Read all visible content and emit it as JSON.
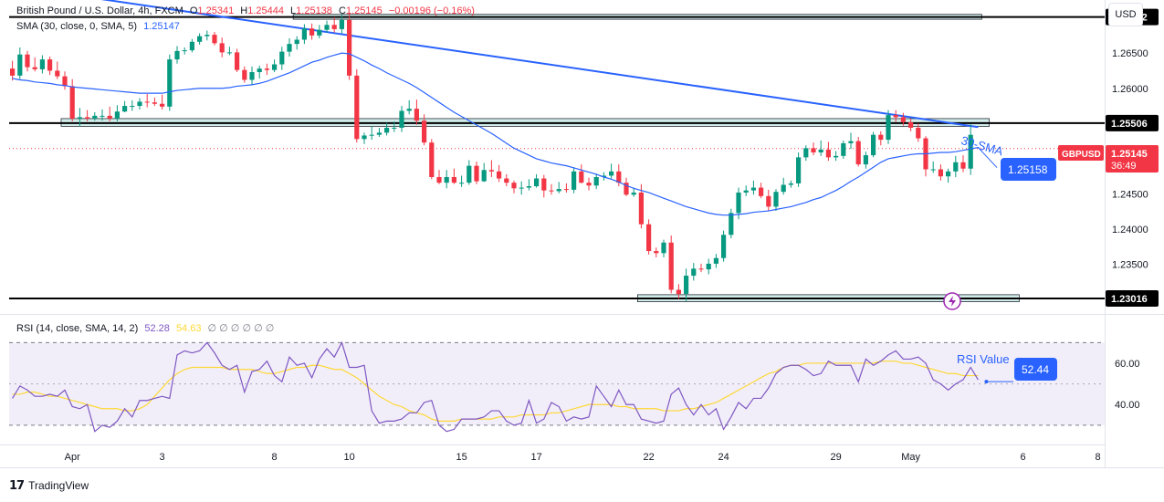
{
  "header": {
    "symbol_title": "British Pound / U.S. Dollar, 4h, FXCM",
    "open_label": "O",
    "open": "1.25341",
    "high_label": "H",
    "high": "1.25444",
    "low_label": "L",
    "low": "1.25138",
    "close_label": "C",
    "close": "1.25145",
    "change": "−0.00196 (−0.16%)",
    "sma_title": "SMA (30, close, 0, SMA, 5)",
    "sma_value": "1.25147",
    "currency": "USD"
  },
  "rsi_header": {
    "title": "RSI (14, close, SMA, 14, 2)",
    "rsi": "52.28",
    "rsi_ma": "54.63",
    "placeholders": "∅ ∅ ∅ ∅ ∅ ∅"
  },
  "colors": {
    "up": "#089981",
    "down": "#f23645",
    "sma": "#2962ff",
    "trendline": "#2962ff",
    "rsi": "#7e57c2",
    "rsi_ma": "#fdd835",
    "rsi_band": "#7e57c2",
    "zone": "#b2dfdb",
    "badge_bg": "#2962ff",
    "price_tag": "#f23645"
  },
  "annotations": {
    "sma_label": "30-SMA",
    "sma_badge": "1.25158",
    "rsi_label": "RSI Value",
    "rsi_badge": "52.44",
    "symbol_tag": "GBPUSD",
    "current_price": "1.25145",
    "countdown": "36:49"
  },
  "footer": {
    "brand": "TradingView"
  },
  "chart_data": {
    "type": "candlestick",
    "price_axis": {
      "min": 1.229,
      "max": 1.2715,
      "ticks": [
        "1.26500",
        "1.26000",
        "1.24500",
        "1.24000",
        "1.23500"
      ],
      "tick_values": [
        1.265,
        1.26,
        1.245,
        1.24,
        1.235
      ],
      "highlighted_levels": [
        {
          "label": "1.27012",
          "value": 1.27012
        },
        {
          "label": "1.25506",
          "value": 1.25506
        },
        {
          "label": "1.23016",
          "value": 1.23016
        }
      ]
    },
    "x_axis": {
      "labels": [
        "Apr",
        "3",
        "8",
        "10",
        "15",
        "17",
        "22",
        "24",
        "29",
        "May",
        "6",
        "8"
      ],
      "label_bar_index": [
        8,
        20,
        35,
        45,
        60,
        70,
        85,
        95,
        110,
        120,
        135,
        145
      ]
    },
    "trendline": {
      "from": {
        "bar": 0,
        "price": 1.2745
      },
      "to": {
        "bar": 129,
        "price": 1.2545
      }
    },
    "zones": [
      {
        "from_bar": 38,
        "to_bar": 129,
        "low": 1.2698,
        "high": 1.2705
      },
      {
        "from_bar": 7,
        "to_bar": 130,
        "low": 1.2546,
        "high": 1.2557
      },
      {
        "from_bar": 84,
        "to_bar": 134,
        "low": 1.2297,
        "high": 1.2307
      }
    ],
    "candles": {
      "open": [
        1.2628,
        1.2618,
        1.2648,
        1.263,
        1.2627,
        1.2641,
        1.2625,
        1.2617,
        1.2603,
        1.2557,
        1.2559,
        1.2557,
        1.2561,
        1.2561,
        1.2557,
        1.2567,
        1.2575,
        1.2575,
        1.2581,
        1.258,
        1.2578,
        1.2574,
        1.2641,
        1.2653,
        1.2654,
        1.2666,
        1.2674,
        1.2676,
        1.2664,
        1.2651,
        1.2651,
        1.2626,
        1.2612,
        1.2623,
        1.2628,
        1.2626,
        1.2634,
        1.2652,
        1.2663,
        1.2669,
        1.2685,
        1.2675,
        1.2683,
        1.269,
        1.2684,
        1.2697,
        1.2618,
        1.2528,
        1.2533,
        1.2534,
        1.2537,
        1.2544,
        1.2544,
        1.2568,
        1.2571,
        1.2554,
        1.2523,
        1.2474,
        1.2466,
        1.2474,
        1.2466,
        1.2466,
        1.249,
        1.2468,
        1.2484,
        1.2482,
        1.2472,
        1.2466,
        1.2458,
        1.2459,
        1.2461,
        1.2472,
        1.2455,
        1.2454,
        1.2457,
        1.2456,
        1.2482,
        1.2466,
        1.2462,
        1.2474,
        1.2476,
        1.2482,
        1.2466,
        1.2449,
        1.2452,
        1.2407,
        1.2369,
        1.2366,
        1.2381,
        1.2314,
        1.2308,
        1.2334,
        1.2344,
        1.2343,
        1.2351,
        1.2359,
        1.2392,
        1.2423,
        1.2452,
        1.2455,
        1.2459,
        1.2447,
        1.2432,
        1.2453,
        1.2463,
        1.2465,
        1.2502,
        1.2515,
        1.2509,
        1.2513,
        1.2502,
        1.2504,
        1.2522,
        1.2525,
        1.2492,
        1.2505,
        1.2534,
        1.2527,
        1.2562,
        1.2559,
        1.2552,
        1.2544,
        1.2529,
        1.2485,
        1.2485,
        1.2475,
        1.2482,
        1.2495,
        1.2486
      ],
      "high": [
        1.2639,
        1.2658,
        1.2653,
        1.2644,
        1.2647,
        1.2645,
        1.2638,
        1.2624,
        1.2613,
        1.2572,
        1.2569,
        1.2566,
        1.257,
        1.2574,
        1.2576,
        1.2582,
        1.2583,
        1.2586,
        1.2592,
        1.2587,
        1.2591,
        1.2648,
        1.266,
        1.2658,
        1.267,
        1.2678,
        1.2682,
        1.268,
        1.2672,
        1.2659,
        1.2656,
        1.2631,
        1.2631,
        1.2632,
        1.2635,
        1.2641,
        1.2659,
        1.2671,
        1.2674,
        1.2691,
        1.2692,
        1.269,
        1.2696,
        1.2701,
        1.2705,
        1.2706,
        1.2627,
        1.2537,
        1.2546,
        1.2544,
        1.2551,
        1.2553,
        1.2575,
        1.2583,
        1.2584,
        1.2563,
        1.2528,
        1.2484,
        1.2484,
        1.2486,
        1.2476,
        1.2498,
        1.2496,
        1.2494,
        1.2498,
        1.2491,
        1.2478,
        1.2469,
        1.2468,
        1.2471,
        1.2478,
        1.2477,
        1.2464,
        1.2467,
        1.2465,
        1.2488,
        1.2492,
        1.2473,
        1.2479,
        1.2481,
        1.2493,
        1.2492,
        1.2473,
        1.2459,
        1.2464,
        1.2414,
        1.2374,
        1.2385,
        1.2391,
        1.2322,
        1.2344,
        1.2352,
        1.2351,
        1.2358,
        1.2365,
        1.2398,
        1.2429,
        1.2459,
        1.2462,
        1.2469,
        1.2466,
        1.2456,
        1.2457,
        1.2473,
        1.2469,
        1.2509,
        1.2519,
        1.2523,
        1.2526,
        1.2524,
        1.2511,
        1.2526,
        1.2537,
        1.2531,
        1.251,
        1.2538,
        1.2539,
        1.2569,
        1.2569,
        1.2565,
        1.2557,
        1.255,
        1.2532,
        1.2496,
        1.2492,
        1.2486,
        1.2504,
        1.2505,
        1.2549
      ],
      "low": [
        1.2611,
        1.2613,
        1.2624,
        1.2624,
        1.2621,
        1.2619,
        1.2613,
        1.2598,
        1.2553,
        1.2546,
        1.2553,
        1.2554,
        1.2554,
        1.2553,
        1.2553,
        1.2566,
        1.2568,
        1.257,
        1.2573,
        1.2575,
        1.257,
        1.2568,
        1.2635,
        1.2648,
        1.2651,
        1.2662,
        1.2668,
        1.2661,
        1.2644,
        1.2647,
        1.2623,
        1.2608,
        1.2605,
        1.2614,
        1.2619,
        1.2623,
        1.2626,
        1.2645,
        1.2655,
        1.2663,
        1.2669,
        1.2671,
        1.2679,
        1.2679,
        1.2678,
        1.2612,
        1.2523,
        1.2521,
        1.2527,
        1.2531,
        1.2533,
        1.2538,
        1.2538,
        1.2563,
        1.2548,
        1.2519,
        1.2471,
        1.2464,
        1.2458,
        1.2464,
        1.246,
        1.2463,
        1.2464,
        1.2467,
        1.2474,
        1.2467,
        1.2461,
        1.2451,
        1.2449,
        1.2455,
        1.2459,
        1.2445,
        1.2449,
        1.2451,
        1.2452,
        1.2451,
        1.2465,
        1.2455,
        1.2457,
        1.2469,
        1.2472,
        1.2461,
        1.2447,
        1.2446,
        1.2401,
        1.2364,
        1.236,
        1.236,
        1.2309,
        1.2301,
        1.2298,
        1.2327,
        1.2339,
        1.2336,
        1.2345,
        1.2354,
        1.2387,
        1.2414,
        1.2447,
        1.2449,
        1.2444,
        1.2426,
        1.2426,
        1.2449,
        1.2459,
        1.246,
        1.2497,
        1.2505,
        1.2504,
        1.2497,
        1.2497,
        1.25,
        1.2514,
        1.2489,
        1.2486,
        1.2502,
        1.2519,
        1.2521,
        1.2552,
        1.2547,
        1.2539,
        1.2524,
        1.2475,
        1.248,
        1.2469,
        1.2466,
        1.2474,
        1.2481,
        1.2477
      ],
      "close": [
        1.2618,
        1.2648,
        1.263,
        1.2627,
        1.2641,
        1.2625,
        1.2617,
        1.2603,
        1.2557,
        1.2559,
        1.2557,
        1.2561,
        1.2561,
        1.2557,
        1.2567,
        1.2575,
        1.2575,
        1.2581,
        1.258,
        1.2578,
        1.2574,
        1.2641,
        1.2653,
        1.2654,
        1.2666,
        1.2674,
        1.2676,
        1.2664,
        1.2651,
        1.2651,
        1.2626,
        1.2612,
        1.2623,
        1.2628,
        1.2626,
        1.2634,
        1.2652,
        1.2663,
        1.2669,
        1.2685,
        1.2675,
        1.2683,
        1.269,
        1.2684,
        1.2697,
        1.2618,
        1.2528,
        1.2533,
        1.2534,
        1.2537,
        1.2544,
        1.2544,
        1.2568,
        1.2571,
        1.2554,
        1.2523,
        1.2474,
        1.2466,
        1.2474,
        1.2466,
        1.2466,
        1.249,
        1.2468,
        1.2484,
        1.2482,
        1.2472,
        1.2466,
        1.2458,
        1.2459,
        1.2461,
        1.2472,
        1.2455,
        1.2454,
        1.2457,
        1.2456,
        1.2482,
        1.2466,
        1.2462,
        1.2474,
        1.2476,
        1.2482,
        1.2466,
        1.2449,
        1.2452,
        1.2407,
        1.2369,
        1.2366,
        1.2381,
        1.2314,
        1.2308,
        1.2334,
        1.2344,
        1.2343,
        1.2351,
        1.2359,
        1.2392,
        1.2423,
        1.2452,
        1.2455,
        1.2459,
        1.2447,
        1.2432,
        1.2453,
        1.2463,
        1.2465,
        1.2502,
        1.2515,
        1.2509,
        1.2513,
        1.2502,
        1.2504,
        1.2522,
        1.2525,
        1.2492,
        1.2505,
        1.2534,
        1.2527,
        1.2562,
        1.2559,
        1.2552,
        1.2544,
        1.2529,
        1.2485,
        1.2485,
        1.2475,
        1.2482,
        1.2495,
        1.2486,
        1.2534
      ]
    },
    "sma": [
      1.2614,
      1.2612,
      1.2611,
      1.2609,
      1.2608,
      1.2607,
      1.2605,
      1.2604,
      1.2602,
      1.2601,
      1.26,
      1.2599,
      1.2598,
      1.2597,
      1.2596,
      1.2595,
      1.2594,
      1.2593,
      1.2593,
      1.2593,
      1.2593,
      1.2595,
      1.2597,
      1.2598,
      1.2599,
      1.26,
      1.26,
      1.26,
      1.26,
      1.2601,
      1.2603,
      1.2604,
      1.2605,
      1.2607,
      1.261,
      1.2614,
      1.2618,
      1.2622,
      1.2627,
      1.2632,
      1.2637,
      1.264,
      1.2644,
      1.2647,
      1.265,
      1.2649,
      1.2644,
      1.2639,
      1.2633,
      1.2628,
      1.2622,
      1.2617,
      1.2612,
      1.2607,
      1.2601,
      1.2594,
      1.2587,
      1.258,
      1.2573,
      1.2566,
      1.256,
      1.2554,
      1.2548,
      1.2542,
      1.2536,
      1.2529,
      1.2522,
      1.2515,
      1.251,
      1.2505,
      1.25,
      1.2497,
      1.2494,
      1.2492,
      1.249,
      1.2487,
      1.2484,
      1.2481,
      1.2478,
      1.2474,
      1.2471,
      1.2467,
      1.2462,
      1.2458,
      1.2455,
      1.2452,
      1.2448,
      1.2444,
      1.244,
      1.2436,
      1.2432,
      1.2429,
      1.2426,
      1.2423,
      1.2421,
      1.242,
      1.242,
      1.2421,
      1.2422,
      1.2424,
      1.2425,
      1.2426,
      1.2428,
      1.243,
      1.2432,
      1.2435,
      1.2438,
      1.2442,
      1.2445,
      1.245,
      1.2455,
      1.2461,
      1.2468,
      1.2474,
      1.2481,
      1.2488,
      1.2495,
      1.25,
      1.2502,
      1.2504,
      1.2506,
      1.2507,
      1.2507,
      1.2508,
      1.2509,
      1.2509,
      1.251,
      1.2512,
      1.2514,
      1.2516
    ],
    "rsi_axis": {
      "min": 22,
      "max": 75,
      "ticks": [
        "60.00",
        "40.00"
      ],
      "tick_values": [
        60,
        40
      ],
      "band": [
        30,
        70
      ],
      "mid": 50
    },
    "rsi": [
      43,
      49,
      47,
      44,
      44,
      45,
      44,
      47,
      39,
      38,
      40,
      27,
      30,
      29,
      32,
      38,
      34,
      42,
      42,
      43,
      44,
      43,
      64,
      66,
      65,
      66,
      70,
      65,
      59,
      57,
      59,
      46,
      56,
      57,
      61,
      54,
      51,
      63,
      59,
      60,
      53,
      62,
      67,
      63,
      70,
      58,
      58,
      59,
      37,
      31,
      32,
      32,
      33,
      36,
      36,
      41,
      42,
      30,
      27,
      28,
      33,
      33,
      33,
      34,
      37,
      37,
      32,
      30,
      31,
      42,
      31,
      33,
      41,
      39,
      32,
      34,
      33,
      34,
      49,
      44,
      39,
      47,
      40,
      40,
      33,
      32,
      31,
      32,
      45,
      48,
      40,
      35,
      40,
      35,
      38,
      28,
      34,
      41,
      38,
      43,
      43,
      48,
      55,
      58,
      59,
      59,
      57,
      54,
      55,
      61,
      59,
      59,
      59,
      51,
      62,
      59,
      61,
      64,
      66,
      62,
      62,
      63,
      60,
      52,
      50,
      47,
      50,
      52,
      58,
      52
    ],
    "rsi_ma": [
      45,
      45,
      46,
      46,
      45,
      44,
      44,
      43,
      42,
      41,
      40,
      39,
      38,
      38,
      38,
      37,
      37,
      38,
      40,
      44,
      48,
      52,
      55,
      57,
      58,
      58,
      58,
      58,
      58,
      57,
      57,
      57,
      57,
      56,
      55,
      55,
      56,
      57,
      58,
      58,
      59,
      59,
      58,
      57,
      57,
      55,
      53,
      50,
      47,
      44,
      42,
      40,
      39,
      37,
      36,
      35,
      33,
      32,
      32,
      32,
      33,
      33,
      33,
      33,
      33,
      34,
      34,
      34,
      35,
      35,
      35,
      35,
      36,
      36,
      37,
      38,
      39,
      40,
      40,
      40,
      40,
      39,
      39,
      38,
      38,
      38,
      38,
      37,
      37,
      37,
      38,
      38,
      39,
      40,
      41,
      43,
      45,
      47,
      49,
      51,
      53,
      55,
      56,
      58,
      59,
      59,
      60,
      60,
      60,
      60,
      60,
      60,
      60,
      60,
      60,
      60,
      61,
      61,
      61,
      60,
      60,
      59,
      58,
      57,
      56,
      55,
      55,
      54,
      54,
      54
    ]
  }
}
